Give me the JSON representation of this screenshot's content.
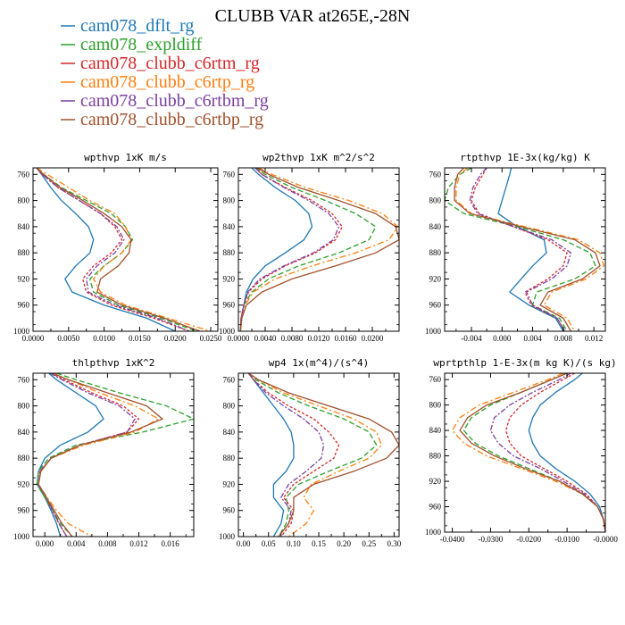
{
  "figure": {
    "title": "CLUBB VAR at265E,-28N"
  },
  "legend": [
    {
      "name": "cam078_dflt_rg",
      "color": "#1f77b4"
    },
    {
      "name": "cam078_expldiff",
      "color": "#2ca02c"
    },
    {
      "name": "cam078_clubb_c6rtm_rg",
      "color": "#d62728"
    },
    {
      "name": "cam078_clubb_c6rtp_rg",
      "color": "#ff7f0e"
    },
    {
      "name": "cam078_clubb_c6rtbm_rg",
      "color": "#7b3fa0"
    },
    {
      "name": "cam078_clubb_c6rtbp_rg",
      "color": "#a0522d"
    }
  ],
  "chart_data": [
    {
      "type": "line",
      "title": "wpthvp  1xK m/s",
      "xlim": [
        0,
        0.026
      ],
      "ylim": [
        1000,
        750
      ],
      "xticks": [
        "0.0000",
        "0.0050",
        "0.0100",
        "0.0150",
        "0.0200",
        "0.0250"
      ],
      "xtick_values": [
        0,
        0.005,
        0.01,
        0.015,
        0.02,
        0.025
      ],
      "yticks": [
        760,
        800,
        840,
        880,
        920,
        960,
        1000
      ],
      "y": [
        750,
        760,
        780,
        800,
        820,
        840,
        860,
        880,
        900,
        920,
        940,
        960,
        980,
        1000
      ],
      "series": [
        {
          "values": [
            0.0005,
            0.0012,
            0.0025,
            0.004,
            0.006,
            0.0078,
            0.0085,
            0.008,
            0.006,
            0.0045,
            0.0055,
            0.01,
            0.016,
            0.02
          ]
        },
        {
          "values": [
            0.0005,
            0.0015,
            0.004,
            0.0075,
            0.011,
            0.013,
            0.014,
            0.0125,
            0.01,
            0.008,
            0.0085,
            0.012,
            0.018,
            0.023
          ]
        },
        {
          "values": [
            0.0005,
            0.0013,
            0.0035,
            0.0065,
            0.0095,
            0.0115,
            0.0125,
            0.011,
            0.0085,
            0.007,
            0.0075,
            0.011,
            0.017,
            0.022
          ]
        },
        {
          "values": [
            0.0005,
            0.002,
            0.005,
            0.008,
            0.0115,
            0.013,
            0.0138,
            0.0125,
            0.01,
            0.0085,
            0.0095,
            0.013,
            0.019,
            0.025
          ]
        },
        {
          "values": [
            0.0005,
            0.0013,
            0.0035,
            0.0065,
            0.0095,
            0.0118,
            0.0128,
            0.0115,
            0.009,
            0.0075,
            0.0078,
            0.0115,
            0.0175,
            0.022
          ]
        },
        {
          "values": [
            0.0005,
            0.0015,
            0.0038,
            0.007,
            0.01,
            0.0125,
            0.0138,
            0.0135,
            0.012,
            0.0095,
            0.009,
            0.0125,
            0.0185,
            0.0235
          ]
        }
      ]
    },
    {
      "type": "line",
      "title": "wp2thvp  1xK m^2/s^2",
      "xlim": [
        0,
        0.024
      ],
      "ylim": [
        1000,
        750
      ],
      "xticks": [
        "0.0000",
        "0.0040",
        "0.0080",
        "0.0120",
        "0.0160",
        "0.0200"
      ],
      "xtick_values": [
        0,
        0.004,
        0.008,
        0.012,
        0.016,
        0.02
      ],
      "yticks": [
        760,
        800,
        840,
        880,
        920,
        960,
        1000
      ],
      "y": [
        750,
        760,
        780,
        800,
        820,
        840,
        860,
        880,
        900,
        920,
        940,
        960,
        980,
        1000
      ],
      "series": [
        {
          "values": [
            0.002,
            0.003,
            0.0055,
            0.0085,
            0.0105,
            0.011,
            0.0098,
            0.007,
            0.004,
            0.0022,
            0.0012,
            0.0008,
            0.0005,
            0.0003
          ]
        },
        {
          "values": [
            0.0025,
            0.004,
            0.008,
            0.013,
            0.0175,
            0.0205,
            0.0195,
            0.015,
            0.009,
            0.0045,
            0.002,
            0.0008,
            0.0004,
            0.0003
          ]
        },
        {
          "values": [
            0.0025,
            0.0035,
            0.007,
            0.011,
            0.014,
            0.0155,
            0.0145,
            0.0115,
            0.007,
            0.0035,
            0.0015,
            0.0008,
            0.0004,
            0.0003
          ]
        },
        {
          "values": [
            0.003,
            0.005,
            0.01,
            0.0165,
            0.0215,
            0.0238,
            0.0225,
            0.0175,
            0.011,
            0.0055,
            0.0022,
            0.001,
            0.0005,
            0.0003
          ]
        },
        {
          "values": [
            0.0025,
            0.0035,
            0.0068,
            0.0105,
            0.0135,
            0.015,
            0.0142,
            0.0112,
            0.0068,
            0.0032,
            0.0014,
            0.0008,
            0.0004,
            0.0003
          ]
        },
        {
          "values": [
            0.0028,
            0.0045,
            0.009,
            0.015,
            0.0205,
            0.0235,
            0.024,
            0.0205,
            0.0145,
            0.008,
            0.0035,
            0.0012,
            0.0005,
            0.0003
          ]
        }
      ]
    },
    {
      "type": "line",
      "title": "rtpthvp  1E-3x(kg/kg) K",
      "xlim": [
        -0.0075,
        0.0135
      ],
      "ylim": [
        1000,
        750
      ],
      "xticks": [
        "-0.004",
        "0.000",
        "0.004",
        "0.008",
        "0.012"
      ],
      "xtick_values": [
        -0.004,
        0,
        0.004,
        0.008,
        0.012
      ],
      "yticks": [
        760,
        800,
        840,
        880,
        920,
        960,
        1000
      ],
      "y": [
        750,
        760,
        780,
        800,
        820,
        840,
        860,
        880,
        900,
        920,
        940,
        960,
        980,
        1000
      ],
      "series": [
        {
          "values": [
            0.0012,
            0.001,
            0.0005,
            0.0,
            -0.0005,
            0.002,
            0.0055,
            0.0058,
            0.004,
            0.0025,
            0.001,
            0.0035,
            0.007,
            0.008
          ]
        },
        {
          "values": [
            -0.004,
            -0.0055,
            -0.007,
            -0.0075,
            -0.005,
            0.002,
            0.008,
            0.0115,
            0.0122,
            0.0095,
            0.0045,
            0.004,
            0.0075,
            0.0085
          ]
        },
        {
          "values": [
            -0.002,
            -0.0025,
            -0.0035,
            -0.004,
            -0.003,
            0.0015,
            0.006,
            0.0085,
            0.008,
            0.006,
            0.003,
            0.0038,
            0.0072,
            0.0082
          ]
        },
        {
          "values": [
            -0.0045,
            -0.0055,
            -0.006,
            -0.006,
            -0.004,
            0.003,
            0.01,
            0.0128,
            0.0133,
            0.011,
            0.0065,
            0.0055,
            0.0085,
            0.0095
          ]
        },
        {
          "values": [
            -0.002,
            -0.0028,
            -0.0038,
            -0.0042,
            -0.0032,
            0.0015,
            0.0065,
            0.009,
            0.0085,
            0.0065,
            0.0032,
            0.004,
            0.0072,
            0.0082
          ]
        },
        {
          "values": [
            -0.005,
            -0.0058,
            -0.0062,
            -0.0062,
            -0.0042,
            0.0025,
            0.0095,
            0.0122,
            0.0128,
            0.0105,
            0.006,
            0.005,
            0.008,
            0.009
          ]
        }
      ]
    },
    {
      "type": "line",
      "title": "thlpthvp  1xK^2",
      "xlim": [
        -0.0015,
        0.019
      ],
      "ylim": [
        1000,
        750
      ],
      "xticks": [
        "0.000",
        "0.004",
        "0.008",
        "0.012",
        "0.016"
      ],
      "xtick_values": [
        0,
        0.004,
        0.008,
        0.012,
        0.016
      ],
      "yticks": [
        760,
        800,
        840,
        880,
        920,
        960,
        1000
      ],
      "y": [
        750,
        760,
        780,
        800,
        820,
        840,
        860,
        880,
        900,
        920,
        940,
        960,
        980,
        1000
      ],
      "series": [
        {
          "values": [
            0.0005,
            0.0015,
            0.004,
            0.0065,
            0.0075,
            0.0055,
            0.002,
            0.0,
            -0.0008,
            -0.001,
            0.0,
            0.0008,
            0.0015,
            0.002
          ]
        },
        {
          "values": [
            0.0015,
            0.004,
            0.0095,
            0.0155,
            0.019,
            0.0125,
            0.004,
            0.0005,
            -0.0008,
            -0.001,
            0.0,
            0.001,
            0.002,
            0.0035
          ]
        },
        {
          "values": [
            0.0008,
            0.0025,
            0.006,
            0.01,
            0.012,
            0.0105,
            0.0045,
            0.0008,
            -0.0006,
            -0.0008,
            0.0002,
            0.001,
            0.0018,
            0.0028
          ]
        },
        {
          "values": [
            0.001,
            0.003,
            0.007,
            0.0115,
            0.0145,
            0.0115,
            0.005,
            0.0008,
            -0.0005,
            -0.0008,
            0.0003,
            0.0015,
            0.003,
            0.006
          ]
        },
        {
          "values": [
            0.0007,
            0.0022,
            0.0055,
            0.0095,
            0.0115,
            0.0105,
            0.0045,
            0.0008,
            -0.0006,
            -0.0008,
            0.0002,
            0.001,
            0.0018,
            0.0028
          ]
        },
        {
          "values": [
            0.001,
            0.003,
            0.008,
            0.013,
            0.015,
            0.011,
            0.0045,
            0.0008,
            -0.0005,
            -0.0008,
            0.0002,
            0.0012,
            0.0022,
            0.0035
          ]
        }
      ]
    },
    {
      "type": "line",
      "title": "wp4  1x(m^4)/(s^4)",
      "xlim": [
        -0.01,
        0.31
      ],
      "ylim": [
        1000,
        750
      ],
      "xticks": [
        "0.00",
        "0.05",
        "0.10",
        "0.15",
        "0.20",
        "0.25",
        "0.30"
      ],
      "xtick_values": [
        0,
        0.05,
        0.1,
        0.15,
        0.2,
        0.25,
        0.3
      ],
      "yticks": [
        760,
        800,
        840,
        880,
        920,
        960,
        1000
      ],
      "y": [
        750,
        760,
        780,
        800,
        820,
        840,
        860,
        880,
        900,
        920,
        940,
        960,
        980,
        1000
      ],
      "series": [
        {
          "values": [
            0.01,
            0.02,
            0.04,
            0.06,
            0.08,
            0.095,
            0.1,
            0.1,
            0.085,
            0.06,
            0.06,
            0.08,
            0.075,
            0.06
          ]
        },
        {
          "values": [
            0.01,
            0.025,
            0.07,
            0.13,
            0.2,
            0.25,
            0.265,
            0.235,
            0.17,
            0.11,
            0.085,
            0.09,
            0.085,
            0.07
          ]
        },
        {
          "values": [
            0.01,
            0.02,
            0.05,
            0.09,
            0.14,
            0.17,
            0.19,
            0.18,
            0.14,
            0.1,
            0.08,
            0.1,
            0.095,
            0.075
          ]
        },
        {
          "values": [
            0.01,
            0.03,
            0.08,
            0.15,
            0.22,
            0.265,
            0.275,
            0.25,
            0.19,
            0.135,
            0.12,
            0.14,
            0.125,
            0.09
          ]
        },
        {
          "values": [
            0.01,
            0.02,
            0.045,
            0.08,
            0.12,
            0.15,
            0.16,
            0.155,
            0.125,
            0.09,
            0.075,
            0.095,
            0.09,
            0.07
          ]
        },
        {
          "values": [
            0.01,
            0.03,
            0.09,
            0.17,
            0.25,
            0.295,
            0.31,
            0.285,
            0.22,
            0.14,
            0.1,
            0.1,
            0.09,
            0.07
          ]
        }
      ]
    },
    {
      "type": "line",
      "title": "wprtpthlp  1-E-3x(m kg K)/(s kg)",
      "xlim": [
        -0.042,
        0.0
      ],
      "ylim": [
        1000,
        750
      ],
      "xticks": [
        "-0.0400",
        "-0.0300",
        "-0.0200",
        "-0.0100",
        "-0.0000"
      ],
      "xtick_values": [
        -0.04,
        -0.03,
        -0.02,
        -0.01,
        0
      ],
      "yticks": [
        760,
        800,
        840,
        880,
        920,
        960,
        1000
      ],
      "y": [
        750,
        760,
        780,
        800,
        820,
        840,
        860,
        880,
        900,
        920,
        940,
        960,
        980,
        1000
      ],
      "series": [
        {
          "values": [
            -0.006,
            -0.008,
            -0.013,
            -0.017,
            -0.019,
            -0.02,
            -0.019,
            -0.017,
            -0.013,
            -0.008,
            -0.004,
            -0.0015,
            -0.0005,
            0.0
          ]
        },
        {
          "values": [
            -0.01,
            -0.014,
            -0.022,
            -0.03,
            -0.035,
            -0.037,
            -0.034,
            -0.028,
            -0.02,
            -0.012,
            -0.006,
            -0.002,
            -0.0005,
            0.0
          ]
        },
        {
          "values": [
            -0.008,
            -0.011,
            -0.017,
            -0.022,
            -0.025,
            -0.026,
            -0.025,
            -0.022,
            -0.016,
            -0.01,
            -0.005,
            -0.002,
            -0.0005,
            0.0
          ]
        },
        {
          "values": [
            -0.011,
            -0.015,
            -0.024,
            -0.033,
            -0.038,
            -0.04,
            -0.037,
            -0.031,
            -0.022,
            -0.013,
            -0.006,
            -0.002,
            -0.0005,
            0.0
          ]
        },
        {
          "values": [
            -0.009,
            -0.012,
            -0.019,
            -0.025,
            -0.029,
            -0.03,
            -0.028,
            -0.024,
            -0.017,
            -0.011,
            -0.0055,
            -0.002,
            -0.0005,
            0.0
          ]
        },
        {
          "values": [
            -0.01,
            -0.014,
            -0.022,
            -0.031,
            -0.036,
            -0.038,
            -0.035,
            -0.029,
            -0.021,
            -0.012,
            -0.006,
            -0.002,
            -0.0005,
            0.0
          ]
        }
      ]
    }
  ]
}
